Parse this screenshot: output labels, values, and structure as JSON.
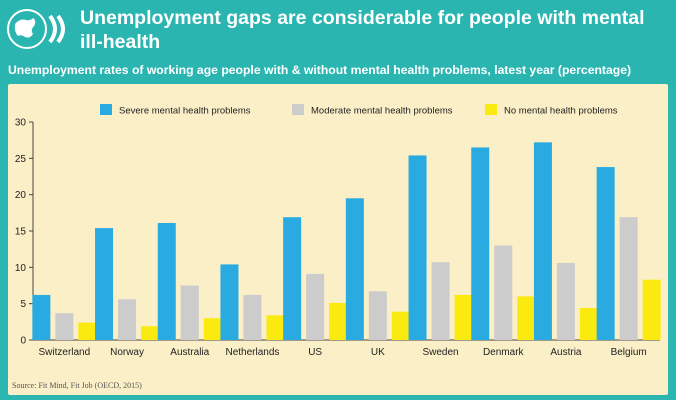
{
  "header": {
    "title": "Unemployment gaps are considerable for people with mental ill-health",
    "subtitle": "Unemployment rates of working age people with & without mental health problems, latest year (percentage)"
  },
  "source": "Source: Fit Mind, Fit Job (OECD, 2015)",
  "colors": {
    "header_bg": "#2ab5b1",
    "panel_bg": "#fbefc8"
  },
  "chart_data": {
    "type": "bar",
    "categories": [
      "Switzerland",
      "Norway",
      "Australia",
      "Netherlands",
      "US",
      "UK",
      "Sweden",
      "Denmark",
      "Austria",
      "Belgium"
    ],
    "series": [
      {
        "name": "Severe mental health problems",
        "color": "#29aae1",
        "values": [
          6.2,
          15.4,
          16.1,
          10.4,
          16.9,
          19.5,
          25.4,
          26.5,
          27.2,
          23.8
        ]
      },
      {
        "name": "Moderate mental health problems",
        "color": "#cccccc",
        "values": [
          3.7,
          5.6,
          7.5,
          6.2,
          9.1,
          6.7,
          10.7,
          13.0,
          10.6,
          16.9
        ]
      },
      {
        "name": "No mental health problems",
        "color": "#fbea0f",
        "values": [
          2.4,
          1.9,
          3.0,
          3.4,
          5.1,
          3.9,
          6.2,
          6.0,
          4.4,
          8.3
        ]
      }
    ],
    "ylim": [
      0,
      30
    ],
    "yticks": [
      0,
      5,
      10,
      15,
      20,
      25,
      30
    ],
    "legend": "top"
  }
}
